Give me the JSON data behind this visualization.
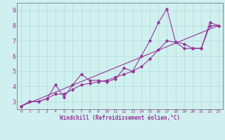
{
  "xlabel": "Windchill (Refroidissement éolien,°C)",
  "bg_color": "#cff0ef",
  "grid_color": "#b8dede",
  "line_color": "#993399",
  "spine_color": "#888888",
  "xlim": [
    -0.5,
    23.5
  ],
  "ylim": [
    2.5,
    9.5
  ],
  "xticks": [
    0,
    1,
    2,
    3,
    4,
    5,
    6,
    7,
    8,
    9,
    10,
    11,
    12,
    13,
    14,
    15,
    16,
    17,
    18,
    19,
    20,
    21,
    22,
    23
  ],
  "yticks": [
    3,
    4,
    5,
    6,
    7,
    8,
    9
  ],
  "series1_x": [
    0,
    1,
    2,
    3,
    4,
    5,
    6,
    7,
    8,
    9,
    10,
    11,
    12,
    13,
    14,
    15,
    16,
    17,
    18,
    19,
    20,
    21,
    22,
    23
  ],
  "series1_y": [
    2.7,
    3.0,
    3.0,
    3.2,
    4.1,
    3.3,
    4.1,
    4.8,
    4.4,
    4.4,
    4.3,
    4.5,
    5.2,
    5.0,
    6.0,
    7.0,
    8.2,
    9.1,
    6.9,
    6.5,
    6.5,
    6.5,
    8.2,
    8.0
  ],
  "series2_x": [
    0,
    1,
    2,
    3,
    4,
    5,
    6,
    7,
    8,
    9,
    10,
    11,
    12,
    13,
    14,
    15,
    16,
    17,
    18,
    19,
    20,
    21,
    22,
    23
  ],
  "series2_y": [
    2.7,
    3.0,
    3.0,
    3.2,
    3.5,
    3.5,
    3.8,
    4.1,
    4.2,
    4.3,
    4.4,
    4.6,
    4.8,
    5.0,
    5.3,
    5.8,
    6.4,
    7.0,
    6.9,
    6.8,
    6.5,
    6.5,
    8.0,
    8.0
  ],
  "series3_x": [
    0,
    23
  ],
  "series3_y": [
    2.7,
    8.0
  ]
}
